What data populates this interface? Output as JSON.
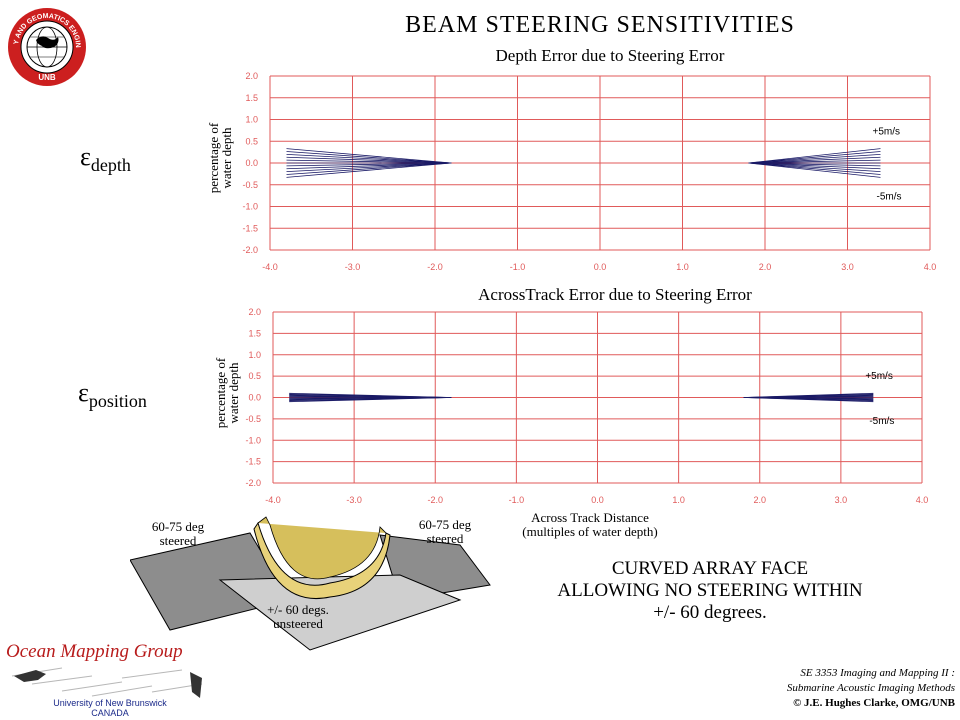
{
  "header": {
    "title": "BEAM STEERING SENSITIVITIES",
    "logo_text": "GEODESY AND GEOMATICS ENGINEERING",
    "logo_sub": "UNB"
  },
  "chart_data": [
    {
      "type": "line",
      "title": "Depth Error due to Steering Error",
      "symbol": "ε",
      "symbol_sub": "depth",
      "ylabel_line1": "percentage of",
      "ylabel_line2": "water depth",
      "xlim": [
        -4.0,
        4.0
      ],
      "ylim": [
        -2.0,
        2.0
      ],
      "xticks": [
        "-4.0",
        "-3.0",
        "-2.0",
        "-1.0",
        "0.0",
        "1.0",
        "2.0",
        "3.0",
        "4.0"
      ],
      "yticks": [
        "2.0",
        "1.5",
        "1.0",
        "0.5",
        "0.0",
        "-0.5",
        "-1.0",
        "-1.5",
        "-2.0"
      ],
      "grid": true,
      "annotations": [
        "+5m/s",
        "-5m/s"
      ],
      "fan": {
        "left_x": [
          -3.8,
          -1.8
        ],
        "right_x": [
          1.8,
          3.4
        ],
        "spread_max": 0.33,
        "lines": 11
      }
    },
    {
      "type": "line",
      "title": "AcrossTrack Error due to Steering Error",
      "symbol": "ε",
      "symbol_sub": "position",
      "ylabel_line1": "percentage of",
      "ylabel_line2": "water depth",
      "xlabel_line1": "Across Track Distance",
      "xlabel_line2": "(multiples of water depth)",
      "xlim": [
        -4.0,
        4.0
      ],
      "ylim": [
        -2.0,
        2.0
      ],
      "xticks": [
        "-4.0",
        "-3.0",
        "-2.0",
        "-1.0",
        "0.0",
        "1.0",
        "2.0",
        "3.0",
        "4.0"
      ],
      "yticks": [
        "2.0",
        "1.5",
        "1.0",
        "0.5",
        "0.0",
        "-0.5",
        "-1.0",
        "-1.5",
        "-2.0"
      ],
      "grid": true,
      "annotations": [
        "+5m/s",
        "-5m/s"
      ],
      "fan": {
        "left_x": [
          -3.8,
          -1.8
        ],
        "right_x": [
          1.8,
          3.4
        ],
        "spread_max": 0.1,
        "lines": 11
      }
    }
  ],
  "diagram": {
    "label_left_1": "60-75 deg",
    "label_left_2": "steered",
    "label_right_1": "60-75 deg",
    "label_right_2": "steered",
    "label_center_1": "+/- 60 degs.",
    "label_center_2": "unsteered"
  },
  "caption": {
    "line1": "CURVED ARRAY FACE",
    "line2": "ALLOWING NO STEERING WITHIN",
    "line3": "+/- 60 degrees."
  },
  "footer": {
    "group_name": "Ocean Mapping Group",
    "university": "University of New Brunswick",
    "country": "CANADA",
    "course_line1": "SE 3353 Imaging and Mapping II :",
    "course_line2": "Submarine Acoustic Imaging Methods",
    "copyright": "© J.E. Hughes Clarke, OMG/UNB"
  },
  "colors": {
    "grid": "#e05a5a",
    "line": "#1a1a66",
    "array": "#e8d27a",
    "logo_red": "#cc1f1f"
  }
}
